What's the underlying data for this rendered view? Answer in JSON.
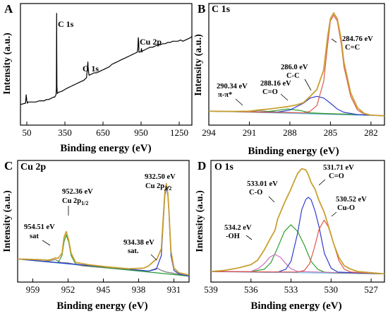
{
  "chart_data": [
    {
      "type": "line",
      "letter": "A",
      "title": "",
      "xlabel": "Binding energy (eV)",
      "ylabel": "Intensity (a.u.)",
      "xlim": [
        0,
        1350
      ],
      "ylim": [
        0,
        100
      ],
      "xticks": [
        50,
        350,
        650,
        950,
        1250
      ],
      "xtick_labels": [
        "50",
        "350",
        "650",
        "950",
        "1250"
      ],
      "series": [
        {
          "color": "#000000",
          "x": [
            0,
            40,
            45,
            50,
            55,
            60,
            70,
            85,
            100,
            120,
            150,
            175,
            190,
            200,
            220,
            240,
            260,
            270,
            280,
            283,
            284,
            285,
            286,
            287,
            290,
            300,
            330,
            360,
            380,
            400,
            420,
            440,
            460,
            480,
            500,
            510,
            520,
            525,
            528,
            531,
            533,
            536,
            540,
            560,
            580,
            600,
            620,
            640,
            660,
            680,
            700,
            720,
            740,
            760,
            780,
            800,
            820,
            840,
            860,
            880,
            900,
            920,
            925,
            928,
            930,
            932,
            933,
            935,
            940,
            950,
            953,
            956,
            960,
            980,
            1000,
            1020,
            1040,
            1060,
            1080,
            1100,
            1120,
            1140,
            1160,
            1180,
            1200,
            1220,
            1240,
            1260,
            1280,
            1300,
            1320,
            1340,
            1350
          ],
          "y": [
            17,
            18,
            25,
            20,
            18,
            19,
            19,
            19,
            19,
            19,
            20,
            20,
            20,
            21,
            21,
            22,
            23,
            23,
            25,
            30,
            60,
            92,
            55,
            32,
            26,
            27,
            28,
            30,
            31,
            32,
            33,
            34,
            35,
            36,
            37,
            38,
            39,
            44,
            48,
            52,
            47,
            44,
            41,
            42,
            43,
            43,
            44,
            45,
            46,
            47,
            48,
            50,
            51,
            52,
            53,
            54,
            55,
            56,
            57,
            58,
            59,
            60,
            64,
            72,
            70,
            66,
            60,
            60,
            60,
            61,
            63,
            60,
            61,
            62,
            63,
            64,
            64,
            65,
            66,
            66,
            67,
            67,
            68,
            68,
            69,
            69,
            69,
            70,
            69,
            70,
            71,
            72,
            73
          ]
        }
      ],
      "annotations": [
        {
          "text": "C 1s",
          "x": 285
        },
        {
          "text": "O 1s",
          "x": 531
        },
        {
          "text": "Cu 2p",
          "x": 933
        }
      ]
    },
    {
      "type": "line",
      "letter": "B",
      "title": "C 1s",
      "xlabel": "Binding energy (eV)",
      "ylabel": "Intensity (a.u.)",
      "xlim": [
        294,
        281
      ],
      "ylim": [
        0,
        100
      ],
      "xticks": [
        294,
        291,
        288,
        285,
        282
      ],
      "xtick_labels": [
        "294",
        "291",
        "288",
        "285",
        "282"
      ],
      "series": [
        {
          "color": "#6ec6ee",
          "x": [
            294,
            281
          ],
          "y": [
            9,
            5
          ]
        },
        {
          "color": "#7a7a7a",
          "x": [
            294,
            292,
            291,
            290.34,
            289.5,
            288.5,
            287,
            285,
            283,
            281
          ],
          "y": [
            9,
            8.6,
            8.6,
            9.5,
            8.6,
            8,
            7.5,
            6.5,
            6,
            5
          ]
        },
        {
          "color": "#2f9e2f",
          "x": [
            294,
            290,
            289,
            288.16,
            287.2,
            286.5,
            285.5,
            284,
            281
          ],
          "y": [
            9,
            8.2,
            9.6,
            11,
            9.5,
            7.6,
            7,
            6.5,
            5
          ]
        },
        {
          "color": "#2f3bcc",
          "x": [
            294,
            289,
            288,
            287,
            286.5,
            286.0,
            285.5,
            285,
            284.5,
            284,
            283,
            281
          ],
          "y": [
            9,
            8,
            10,
            16,
            20.5,
            22,
            20.5,
            16,
            11,
            8,
            6,
            5
          ]
        },
        {
          "color": "#e0574b",
          "x": [
            294,
            287,
            286.5,
            286,
            285.5,
            285.2,
            285,
            284.76,
            284.5,
            284.2,
            284,
            283.5,
            283,
            282.5,
            282,
            281
          ],
          "y": [
            9,
            7.5,
            9,
            14,
            35,
            68,
            88,
            93,
            88,
            68,
            48,
            22,
            10,
            6.5,
            5.5,
            5
          ]
        },
        {
          "color": "#c9a032",
          "x": [
            294,
            292,
            291,
            290.34,
            289.5,
            288.5,
            288.16,
            287.5,
            287,
            286.5,
            286,
            285.5,
            285.2,
            285,
            284.76,
            284.5,
            284.2,
            284,
            283.5,
            283,
            282.5,
            282,
            281
          ],
          "y": [
            9,
            8.8,
            9,
            10,
            11,
            12.5,
            13,
            14.5,
            16.5,
            22,
            28,
            45,
            75,
            90,
            95,
            90,
            72,
            52,
            25,
            12,
            7,
            5.5,
            5
          ]
        }
      ],
      "annotations": [
        {
          "text": "284.76 eV",
          "sub": "C=C",
          "x": 284.76
        },
        {
          "text": "286.0 eV",
          "sub": "C-C",
          "x": 286.0
        },
        {
          "text": "288.16 eV",
          "sub": "C=O",
          "x": 288.16
        },
        {
          "text": "290.34 eV",
          "sub": "π-π*",
          "x": 290.34
        }
      ]
    },
    {
      "type": "line",
      "letter": "C",
      "title": "Cu 2p",
      "xlabel": "Binding energy (eV)",
      "ylabel": "Intensity (a.u.)",
      "xlim": [
        962,
        928
      ],
      "ylim": [
        0,
        100
      ],
      "xticks": [
        959,
        952,
        945,
        938,
        931
      ],
      "xtick_labels": [
        "959",
        "952",
        "945",
        "938",
        "931"
      ],
      "series": [
        {
          "color": "#6ec6ee",
          "x": [
            962,
            928
          ],
          "y": [
            17,
            2
          ]
        },
        {
          "color": "#7a7a7a",
          "x": [
            962,
            957,
            955.5,
            954.51,
            953.5,
            952,
            949,
            940,
            938,
            936,
            935,
            934.38,
            933.5,
            932.5,
            931,
            928
          ],
          "y": [
            17,
            15,
            15.5,
            16.5,
            14,
            13.5,
            11,
            7.5,
            7,
            6.5,
            8,
            9,
            7,
            5.5,
            4.5,
            2
          ]
        },
        {
          "color": "#2f9e2f",
          "x": [
            962,
            954,
            953.2,
            952.8,
            952.36,
            951.9,
            951.4,
            950.5,
            948,
            928
          ],
          "y": [
            17,
            13.8,
            20,
            32,
            38,
            32,
            20,
            12.5,
            11,
            2
          ]
        },
        {
          "color": "#2f3bcc",
          "x": [
            962,
            936,
            934.5,
            933.5,
            933,
            932.8,
            932.5,
            932.2,
            932,
            931.6,
            931,
            930,
            928
          ],
          "y": [
            17,
            6.5,
            8,
            20,
            58,
            72,
            80,
            72,
            58,
            20,
            7,
            4,
            2
          ]
        },
        {
          "color": "#c9a032",
          "x": [
            962,
            958,
            956,
            955,
            954.51,
            954,
            953.2,
            952.8,
            952.36,
            951.9,
            951.4,
            950.5,
            948,
            944,
            940,
            937,
            936,
            935,
            934.38,
            933.5,
            933,
            932.8,
            932.5,
            932.2,
            932,
            931.6,
            931,
            930,
            928
          ],
          "y": [
            17,
            16.5,
            16,
            17,
            18,
            17.5,
            22,
            36,
            41,
            34,
            22,
            14,
            12,
            10,
            8.5,
            9,
            11,
            15,
            17,
            26,
            62,
            75,
            83,
            74,
            60,
            24,
            9,
            5,
            3
          ]
        }
      ],
      "annotations": [
        {
          "text": "932.50 eV",
          "sub": "Cu 2p",
          "subscript": "3/2",
          "x": 932.5
        },
        {
          "text": "952.36 eV",
          "sub": "Cu 2p",
          "subscript": "1/2",
          "x": 952.36
        },
        {
          "text": "954.51 eV",
          "sub": "sat",
          "x": 954.51
        },
        {
          "text": "934.38 eV",
          "sub": "sat.",
          "x": 934.38
        }
      ]
    },
    {
      "type": "line",
      "letter": "D",
      "title": "O 1s",
      "xlabel": "Binding energy (eV)",
      "ylabel": "Intensity (a.u.)",
      "xlim": [
        539,
        526
      ],
      "ylim": [
        0,
        100
      ],
      "xticks": [
        539,
        536,
        533,
        530,
        527
      ],
      "xtick_labels": [
        "539",
        "536",
        "533",
        "530",
        "527"
      ],
      "series": [
        {
          "color": "#6ec6ee",
          "x": [
            539,
            526
          ],
          "y": [
            6,
            4
          ]
        },
        {
          "color": "#2f9e2f",
          "x": [
            539,
            536,
            535,
            534.5,
            534,
            533.5,
            533.01,
            532.5,
            532,
            531.5,
            531,
            530.5,
            530,
            526
          ],
          "y": [
            6,
            6,
            8,
            14,
            27,
            41,
            47,
            41,
            29,
            15,
            8,
            5.5,
            5,
            4
          ]
        },
        {
          "color": "#cc6fc0",
          "x": [
            539,
            536,
            535.4,
            535,
            534.6,
            534.2,
            533.8,
            533.4,
            533,
            532.5,
            526
          ],
          "y": [
            6,
            6,
            9,
            13,
            18.5,
            21,
            18.5,
            13,
            8.5,
            6,
            4
          ]
        },
        {
          "color": "#2f3bcc",
          "x": [
            539,
            534,
            533.4,
            533,
            532.5,
            532.2,
            531.9,
            531.71,
            531.5,
            531.2,
            530.9,
            530.5,
            530,
            529.5,
            526
          ],
          "y": [
            6,
            5.5,
            8,
            15,
            40,
            60,
            69,
            71,
            69,
            59,
            45,
            22,
            9,
            5.5,
            4
          ]
        },
        {
          "color": "#e0574b",
          "x": [
            539,
            532.5,
            532,
            531.6,
            531.2,
            530.9,
            530.52,
            530.2,
            529.8,
            529.4,
            529,
            528.5,
            526
          ],
          "y": [
            6,
            5.5,
            7,
            13,
            29,
            43,
            51,
            45,
            30,
            15,
            8,
            5.5,
            4
          ]
        },
        {
          "color": "#c9a032",
          "x": [
            539,
            538,
            537,
            536,
            535.5,
            535,
            534.5,
            534.2,
            534,
            533.5,
            533.01,
            532.8,
            532.5,
            532.2,
            531.9,
            531.71,
            531.5,
            531.2,
            530.9,
            530.52,
            530.2,
            529.8,
            529.4,
            529,
            528.5,
            528,
            527,
            526
          ],
          "y": [
            6,
            7,
            9,
            12,
            16,
            25,
            36,
            42,
            52,
            66,
            78,
            84,
            92,
            96,
            95,
            91,
            84,
            78,
            68,
            58,
            46,
            30,
            18,
            11,
            8,
            6,
            5,
            4
          ]
        }
      ],
      "annotations": [
        {
          "text": "531.71 eV",
          "sub": "C=O",
          "x": 531.71
        },
        {
          "text": "533.01 eV",
          "sub": "C-O",
          "x": 533.01
        },
        {
          "text": "530.52 eV",
          "sub": "Cu-O",
          "x": 530.52
        },
        {
          "text": "534.2 eV",
          "sub": "-OH",
          "x": 534.2
        }
      ]
    }
  ]
}
